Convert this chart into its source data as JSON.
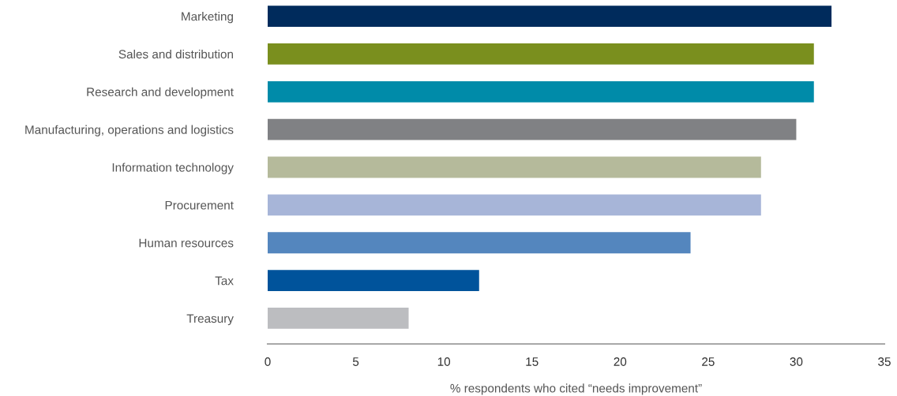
{
  "chart_data": {
    "type": "bar",
    "orientation": "horizontal",
    "categories": [
      "Marketing",
      "Sales and distribution",
      "Research and development",
      "Manufacturing, operations and logistics",
      "Information technology",
      "Procurement",
      "Human resources",
      "Tax",
      "Treasury"
    ],
    "values": [
      32,
      31,
      31,
      30,
      28,
      28,
      24,
      12,
      8
    ],
    "colors": [
      "#002b5c",
      "#7a8f1e",
      "#008ba9",
      "#808184",
      "#b5ba9b",
      "#a7b5d8",
      "#5486be",
      "#00539b",
      "#bcbdc0"
    ],
    "xlabel": "% respondents who cited “needs improvement”",
    "xlim": [
      0,
      35
    ],
    "xticks": [
      0,
      5,
      10,
      15,
      20,
      25,
      30,
      35
    ],
    "grid": false
  }
}
